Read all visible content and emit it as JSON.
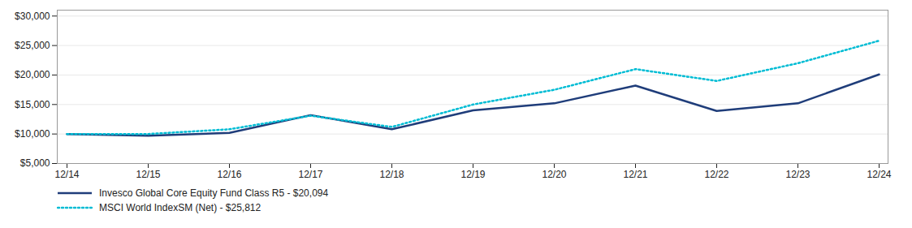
{
  "chart_data": {
    "type": "line",
    "categories": [
      "12/14",
      "12/15",
      "12/16",
      "12/17",
      "12/18",
      "12/19",
      "12/20",
      "12/21",
      "12/22",
      "12/23",
      "12/24"
    ],
    "series": [
      {
        "name": "Invesco Global Core Equity Fund Class R5 - $20,094",
        "color": "#1f3d7a",
        "line_style": "solid",
        "values": [
          10000,
          9700,
          10200,
          13200,
          10800,
          14000,
          15200,
          18200,
          13900,
          15200,
          20094
        ]
      },
      {
        "name": "MSCI World IndexSM (Net) - $25,812",
        "color": "#00bcd4",
        "line_style": "dotted",
        "values": [
          10000,
          10000,
          10800,
          13100,
          11200,
          15000,
          17500,
          21000,
          19000,
          22000,
          25812
        ]
      }
    ],
    "ylim": [
      5000,
      31000
    ],
    "yticks": [
      {
        "value": 5000,
        "label": "$5,000"
      },
      {
        "value": 10000,
        "label": "$10,000"
      },
      {
        "value": 15000,
        "label": "$15,000"
      },
      {
        "value": 20000,
        "label": "$20,000"
      },
      {
        "value": 25000,
        "label": "$25,000"
      },
      {
        "value": 30000,
        "label": "$30,000"
      }
    ],
    "grid": true,
    "legend": "bottom"
  }
}
